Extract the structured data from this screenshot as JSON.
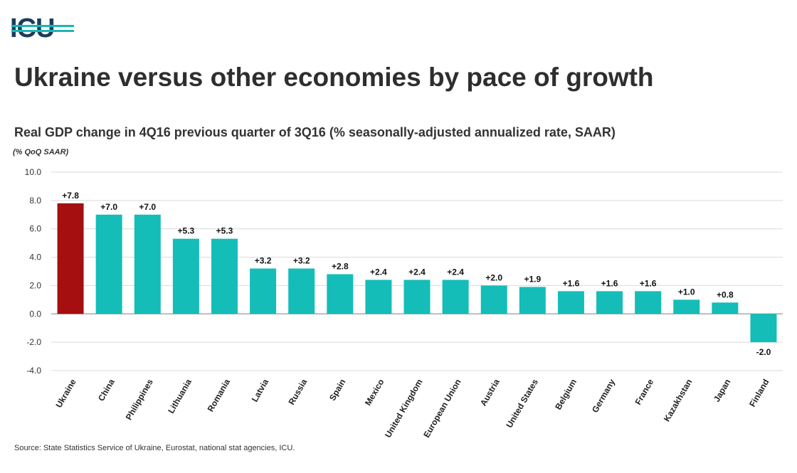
{
  "header": {
    "logo": "ICU",
    "title": "Ukraine versus other economies by pace of growth",
    "subtitle": "Real GDP change in 4Q16 previous quarter of 3Q16 (% seasonally-adjusted annualized rate, SAAR)",
    "unit_label": "(% QoQ SAAR)"
  },
  "footer": {
    "source": "Source: State Statistics Service of Ukraine, Eurostat, national stat agencies, ICU."
  },
  "colors": {
    "highlight": "#a50f0f",
    "bar": "#14bdb8",
    "logo_text": "#1b3d5c",
    "logo_accent": "#19b7b3"
  },
  "chart_data": {
    "type": "bar",
    "categories": [
      "Ukraine",
      "China",
      "Philippines",
      "Lithuania",
      "Romania",
      "Latvia",
      "Russia",
      "Spain",
      "Mexico",
      "United Kingdom",
      "European Union",
      "Austria",
      "United States",
      "Belgium",
      "Germany",
      "France",
      "Kazakhstan",
      "Japan",
      "Finland"
    ],
    "values": [
      7.8,
      7.0,
      7.0,
      5.3,
      5.3,
      3.2,
      3.2,
      2.8,
      2.4,
      2.4,
      2.4,
      2.0,
      1.9,
      1.6,
      1.6,
      1.6,
      1.0,
      0.8,
      -2.0
    ],
    "data_labels": [
      "+7.8",
      "+7.0",
      "+7.0",
      "+5.3",
      "+5.3",
      "+3.2",
      "+3.2",
      "+2.8",
      "+2.4",
      "+2.4",
      "+2.4",
      "+2.0",
      "+1.9",
      "+1.6",
      "+1.6",
      "+1.6",
      "+1.0",
      "+0.8",
      "-2.0"
    ],
    "highlight_category": "Ukraine",
    "ylim": [
      -4.0,
      10.0
    ],
    "yticks": [
      10.0,
      8.0,
      6.0,
      4.0,
      2.0,
      0.0,
      -2.0,
      -4.0
    ],
    "ytick_labels": [
      "10.0",
      "8.0",
      "6.0",
      "4.0",
      "2.0",
      "0.0",
      "-2.0",
      "-4.0"
    ],
    "ylabel": "(% QoQ SAAR)",
    "xlabel": "",
    "grid": true,
    "legend": "none"
  }
}
